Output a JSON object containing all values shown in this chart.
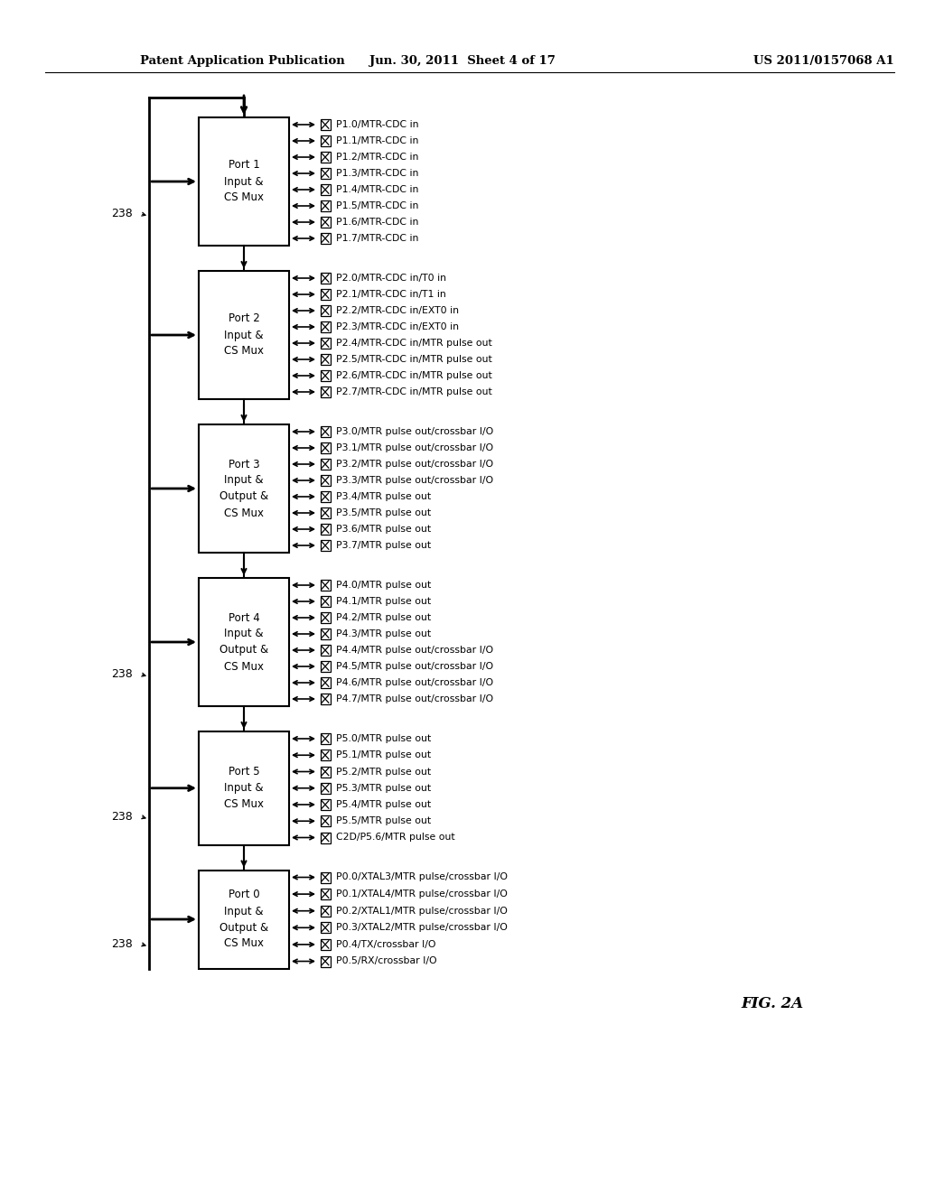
{
  "header_left": "Patent Application Publication",
  "header_center": "Jun. 30, 2011  Sheet 4 of 17",
  "header_right": "US 2011/0157068 A1",
  "fig_label": "FIG. 2A",
  "background": "#ffffff",
  "ports": [
    {
      "label": "Port 1\nInput &\nCS Mux",
      "n_lines": 3,
      "label_238": true,
      "signals": [
        "P1.0/MTR-CDC in",
        "P1.1/MTR-CDC in",
        "P1.2/MTR-CDC in",
        "P1.3/MTR-CDC in",
        "P1.4/MTR-CDC in",
        "P1.5/MTR-CDC in",
        "P1.6/MTR-CDC in",
        "P1.7/MTR-CDC in"
      ]
    },
    {
      "label": "Port 2\nInput &\nCS Mux",
      "n_lines": 3,
      "label_238": false,
      "signals": [
        "P2.0/MTR-CDC in/T0 in",
        "P2.1/MTR-CDC in/T1 in",
        "P2.2/MTR-CDC in/EXT0 in",
        "P2.3/MTR-CDC in/EXT0 in",
        "P2.4/MTR-CDC in/MTR pulse out",
        "P2.5/MTR-CDC in/MTR pulse out",
        "P2.6/MTR-CDC in/MTR pulse out",
        "P2.7/MTR-CDC in/MTR pulse out"
      ]
    },
    {
      "label": "Port 3\nInput &\nOutput &\nCS Mux",
      "n_lines": 4,
      "label_238": false,
      "signals": [
        "P3.0/MTR pulse out/crossbar I/O",
        "P3.1/MTR pulse out/crossbar I/O",
        "P3.2/MTR pulse out/crossbar I/O",
        "P3.3/MTR pulse out/crossbar I/O",
        "P3.4/MTR pulse out",
        "P3.5/MTR pulse out",
        "P3.6/MTR pulse out",
        "P3.7/MTR pulse out"
      ]
    },
    {
      "label": "Port 4\nInput &\nOutput &\nCS Mux",
      "n_lines": 4,
      "label_238": true,
      "signals": [
        "P4.0/MTR pulse out",
        "P4.1/MTR pulse out",
        "P4.2/MTR pulse out",
        "P4.3/MTR pulse out",
        "P4.4/MTR pulse out/crossbar I/O",
        "P4.5/MTR pulse out/crossbar I/O",
        "P4.6/MTR pulse out/crossbar I/O",
        "P4.7/MTR pulse out/crossbar I/O"
      ]
    },
    {
      "label": "Port 5\nInput &\nCS Mux",
      "n_lines": 3,
      "label_238": true,
      "signals": [
        "P5.0/MTR pulse out",
        "P5.1/MTR pulse out",
        "P5.2/MTR pulse out",
        "P5.3/MTR pulse out",
        "P5.4/MTR pulse out",
        "P5.5/MTR pulse out",
        "C2D/P5.6/MTR pulse out"
      ]
    },
    {
      "label": "Port 0\nInput &\nOutput &\nCS Mux",
      "n_lines": 4,
      "label_238": true,
      "signals": [
        "P0.0/XTAL3/MTR pulse/crossbar I/O",
        "P0.1/XTAL4/MTR pulse/crossbar I/O",
        "P0.2/XTAL1/MTR pulse/crossbar I/O",
        "P0.3/XTAL2/MTR pulse/crossbar I/O",
        "P0.4/TX/crossbar I/O",
        "P0.5/RX/crossbar I/O"
      ]
    }
  ]
}
